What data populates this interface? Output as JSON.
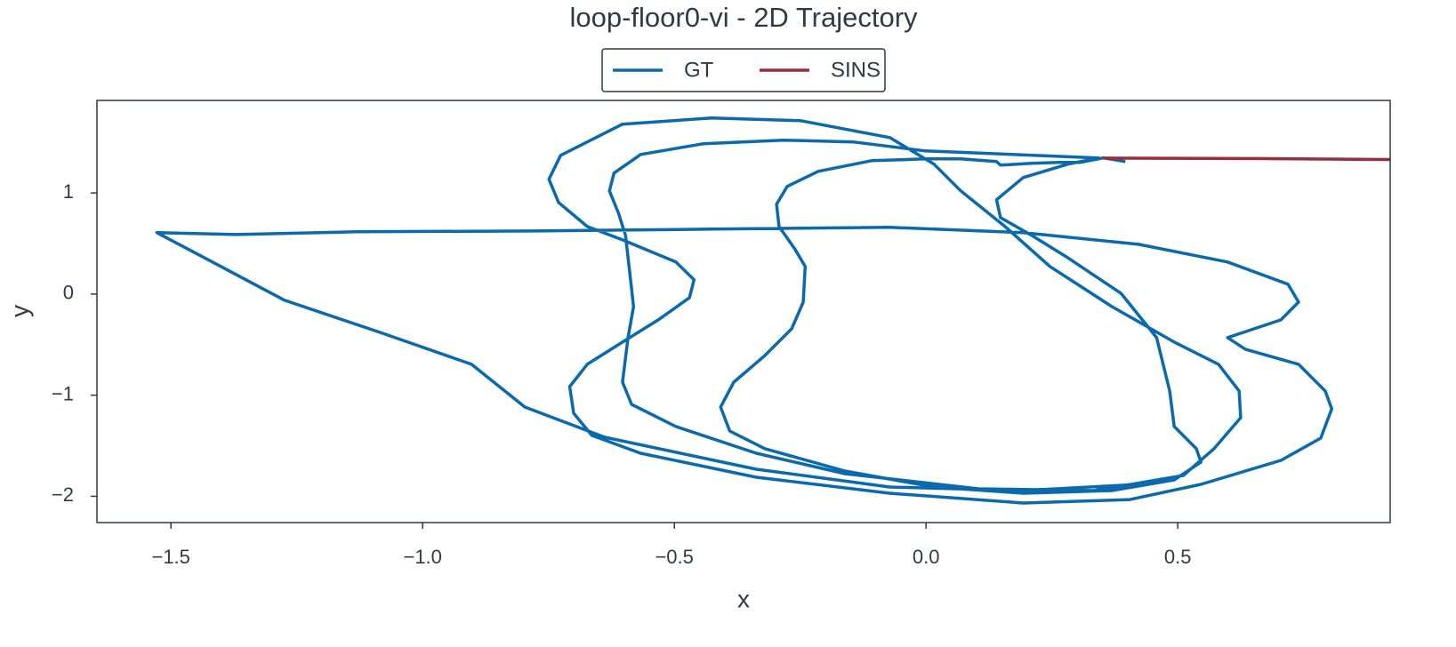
{
  "chart_data": {
    "type": "line",
    "title": "loop-floor0-vi - 2D Trajectory",
    "x_label": "x",
    "y_label": "y",
    "legend": "upper center outside",
    "xlim": [
      -1.647,
      0.922
    ],
    "ylim": [
      -2.26,
      1.915
    ],
    "xticks": [
      {
        "value": -1.5,
        "label": "−1.5"
      },
      {
        "value": -1.0,
        "label": "−1.0"
      },
      {
        "value": -0.5,
        "label": "−0.5"
      },
      {
        "value": 0.0,
        "label": "0.0"
      },
      {
        "value": 0.5,
        "label": "0.5"
      }
    ],
    "yticks": [
      {
        "value": -2,
        "label": "−2"
      },
      {
        "value": -1,
        "label": "−1"
      },
      0,
      1
    ],
    "series": [
      {
        "name": "GT",
        "color": "#0a6aad",
        "x": [
          0.396,
          0.352,
          0.307,
          0.263,
          0.21,
          0.148,
          0.14,
          0.069,
          -0.002,
          -0.108,
          -0.214,
          -0.276,
          -0.297,
          -0.292,
          -0.261,
          -0.24,
          -0.244,
          -0.267,
          -0.32,
          -0.382,
          -0.408,
          -0.39,
          -0.32,
          -0.161,
          0.016,
          0.193,
          0.369,
          0.493,
          0.546,
          0.537,
          0.493,
          0.484,
          0.458,
          0.387,
          0.281,
          0.21,
          0.148,
          0.14,
          0.193,
          0.281,
          0.343,
          -0.002,
          -0.143,
          -0.284,
          -0.443,
          -0.567,
          -0.62,
          -0.629,
          -0.611,
          -0.597,
          -0.588,
          -0.581,
          -0.592,
          -0.603,
          -0.585,
          -0.497,
          -0.337,
          -0.161,
          0.104,
          0.334,
          0.511,
          0.572,
          0.625,
          0.622,
          0.581,
          0.493,
          0.369,
          0.246,
          0.157,
          0.069,
          0.016,
          -0.072,
          -0.249,
          -0.426,
          -0.603,
          -0.726,
          -0.749,
          -0.73,
          -0.673,
          -0.603,
          -0.497,
          -0.461,
          -0.47,
          -0.532,
          -0.603,
          -0.673,
          -0.708,
          -0.7,
          -0.664,
          -0.567,
          -0.337,
          -0.072,
          0.193,
          0.405,
          0.546,
          0.705,
          0.784,
          0.806,
          0.793,
          0.74,
          0.634,
          0.599,
          0.705,
          0.74,
          0.719,
          0.599,
          0.422,
          0.193,
          -0.072,
          -0.426,
          -0.779,
          -1.133,
          -1.371,
          -1.528,
          -1.451,
          -1.274,
          -1.08,
          -0.903,
          -0.797,
          -0.638,
          -0.337,
          -0.072,
          0.193,
          0.422
        ],
        "values": [
          1.31,
          1.346,
          1.302,
          1.302,
          1.293,
          1.275,
          1.31,
          1.337,
          1.337,
          1.319,
          1.214,
          1.064,
          0.888,
          0.668,
          0.449,
          0.273,
          -0.079,
          -0.343,
          -0.607,
          -0.871,
          -1.117,
          -1.354,
          -1.53,
          -1.75,
          -1.908,
          -1.97,
          -1.944,
          -1.838,
          -1.662,
          -1.53,
          -1.31,
          -0.959,
          -0.431,
          0.009,
          0.361,
          0.58,
          0.756,
          0.932,
          1.152,
          1.284,
          1.346,
          1.416,
          1.504,
          1.522,
          1.486,
          1.381,
          1.196,
          1.02,
          0.8,
          0.58,
          0.185,
          -0.123,
          -0.431,
          -0.871,
          -1.091,
          -1.31,
          -1.574,
          -1.777,
          -1.926,
          -1.944,
          -1.794,
          -1.53,
          -1.223,
          -0.959,
          -0.695,
          -0.475,
          -0.123,
          0.273,
          0.668,
          1.02,
          1.284,
          1.548,
          1.715,
          1.741,
          1.68,
          1.372,
          1.135,
          0.906,
          0.668,
          0.536,
          0.317,
          0.141,
          -0.035,
          -0.255,
          -0.475,
          -0.695,
          -0.915,
          -1.179,
          -1.398,
          -1.574,
          -1.812,
          -1.97,
          -2.067,
          -2.032,
          -1.882,
          -1.645,
          -1.425,
          -1.135,
          -0.959,
          -0.695,
          -0.545,
          -0.431,
          -0.255,
          -0.079,
          0.097,
          0.317,
          0.492,
          0.607,
          0.66,
          0.642,
          0.624,
          0.616,
          0.589,
          0.607,
          0.405,
          -0.062,
          -0.387,
          -0.695,
          -1.117,
          -1.416,
          -1.733,
          -1.908,
          -1.944,
          -1.882
        ]
      },
      {
        "name": "SINS",
        "color": "#9b2d3a",
        "x": [
          0.352,
          0.65,
          0.95
        ],
        "values": [
          1.345,
          1.34,
          1.33
        ]
      }
    ]
  }
}
